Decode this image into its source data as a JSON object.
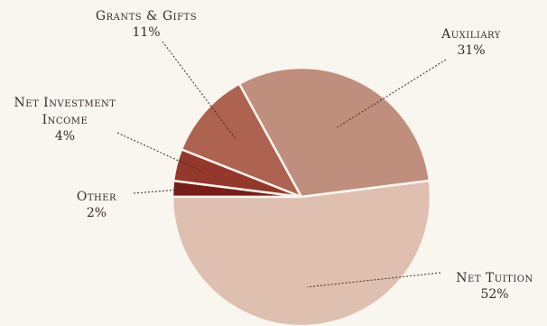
{
  "chart_data": {
    "type": "pie",
    "start_angle_deg": 180,
    "direction": "clockwise",
    "slices": [
      {
        "name": "Other",
        "value": 2,
        "pct_label": "2%",
        "color": "#7a1c17"
      },
      {
        "name": "Net Investment Income",
        "name_lines": [
          "Net Investment",
          "Income"
        ],
        "value": 4,
        "pct_label": "4%",
        "color": "#94382b"
      },
      {
        "name": "Grants & Gifts",
        "value": 11,
        "pct_label": "11%",
        "color": "#ad6350"
      },
      {
        "name": "Auxiliary",
        "value": 31,
        "pct_label": "31%",
        "color": "#c08e7d"
      },
      {
        "name": "Net Tuition",
        "value": 52,
        "pct_label": "52%",
        "color": "#dfc0b0"
      }
    ]
  }
}
